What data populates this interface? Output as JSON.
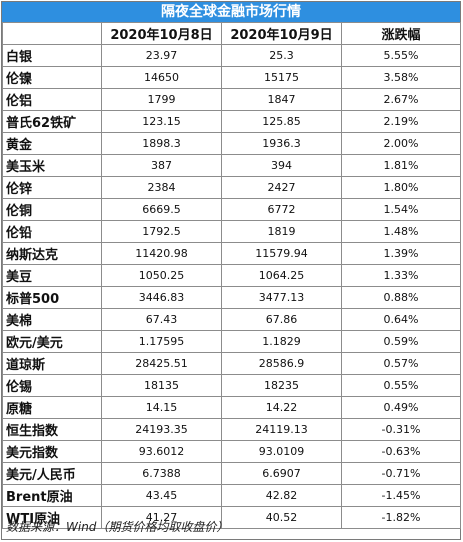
{
  "title": "隔夜全球金融市场行情",
  "headers": [
    "",
    "2020年10月8日",
    "2020年10月9日",
    "涨跌幅"
  ],
  "rows": [
    {
      "name": "白银",
      "d1": "23.97",
      "d2": "25.3",
      "chg": "5.55%"
    },
    {
      "name": "伦镍",
      "d1": "14650",
      "d2": "15175",
      "chg": "3.58%"
    },
    {
      "name": "伦铝",
      "d1": "1799",
      "d2": "1847",
      "chg": "2.67%"
    },
    {
      "name": "普氏62铁矿",
      "d1": "123.15",
      "d2": "125.85",
      "chg": "2.19%"
    },
    {
      "name": "黄金",
      "d1": "1898.3",
      "d2": "1936.3",
      "chg": "2.00%"
    },
    {
      "name": "美玉米",
      "d1": "387",
      "d2": "394",
      "chg": "1.81%"
    },
    {
      "name": "伦锌",
      "d1": "2384",
      "d2": "2427",
      "chg": "1.80%"
    },
    {
      "name": "伦铜",
      "d1": "6669.5",
      "d2": "6772",
      "chg": "1.54%"
    },
    {
      "name": "伦铅",
      "d1": "1792.5",
      "d2": "1819",
      "chg": "1.48%"
    },
    {
      "name": "纳斯达克",
      "d1": "11420.98",
      "d2": "11579.94",
      "chg": "1.39%"
    },
    {
      "name": "美豆",
      "d1": "1050.25",
      "d2": "1064.25",
      "chg": "1.33%"
    },
    {
      "name": "标普500",
      "d1": "3446.83",
      "d2": "3477.13",
      "chg": "0.88%"
    },
    {
      "name": "美棉",
      "d1": "67.43",
      "d2": "67.86",
      "chg": "0.64%"
    },
    {
      "name": "欧元/美元",
      "d1": "1.17595",
      "d2": "1.1829",
      "chg": "0.59%"
    },
    {
      "name": "道琼斯",
      "d1": "28425.51",
      "d2": "28586.9",
      "chg": "0.57%"
    },
    {
      "name": "伦锡",
      "d1": "18135",
      "d2": "18235",
      "chg": "0.55%"
    },
    {
      "name": "原糖",
      "d1": "14.15",
      "d2": "14.22",
      "chg": "0.49%"
    },
    {
      "name": "恒生指数",
      "d1": "24193.35",
      "d2": "24119.13",
      "chg": "-0.31%"
    },
    {
      "name": "美元指数",
      "d1": "93.6012",
      "d2": "93.0109",
      "chg": "-0.63%"
    },
    {
      "name": "美元/人民币",
      "d1": "6.7388",
      "d2": "6.6907",
      "chg": "-0.71%"
    },
    {
      "name": "Brent原油",
      "d1": "43.45",
      "d2": "42.82",
      "chg": "-1.45%"
    },
    {
      "name": "WTI原油",
      "d1": "41.27",
      "d2": "40.52",
      "chg": "-1.82%"
    }
  ],
  "footer": "数据来源：Wind（期货价格均取收盘价）",
  "colors": {
    "title_bg": "#2e8fe0",
    "title_text": "#ffffff",
    "border": "#8c8c8c"
  }
}
